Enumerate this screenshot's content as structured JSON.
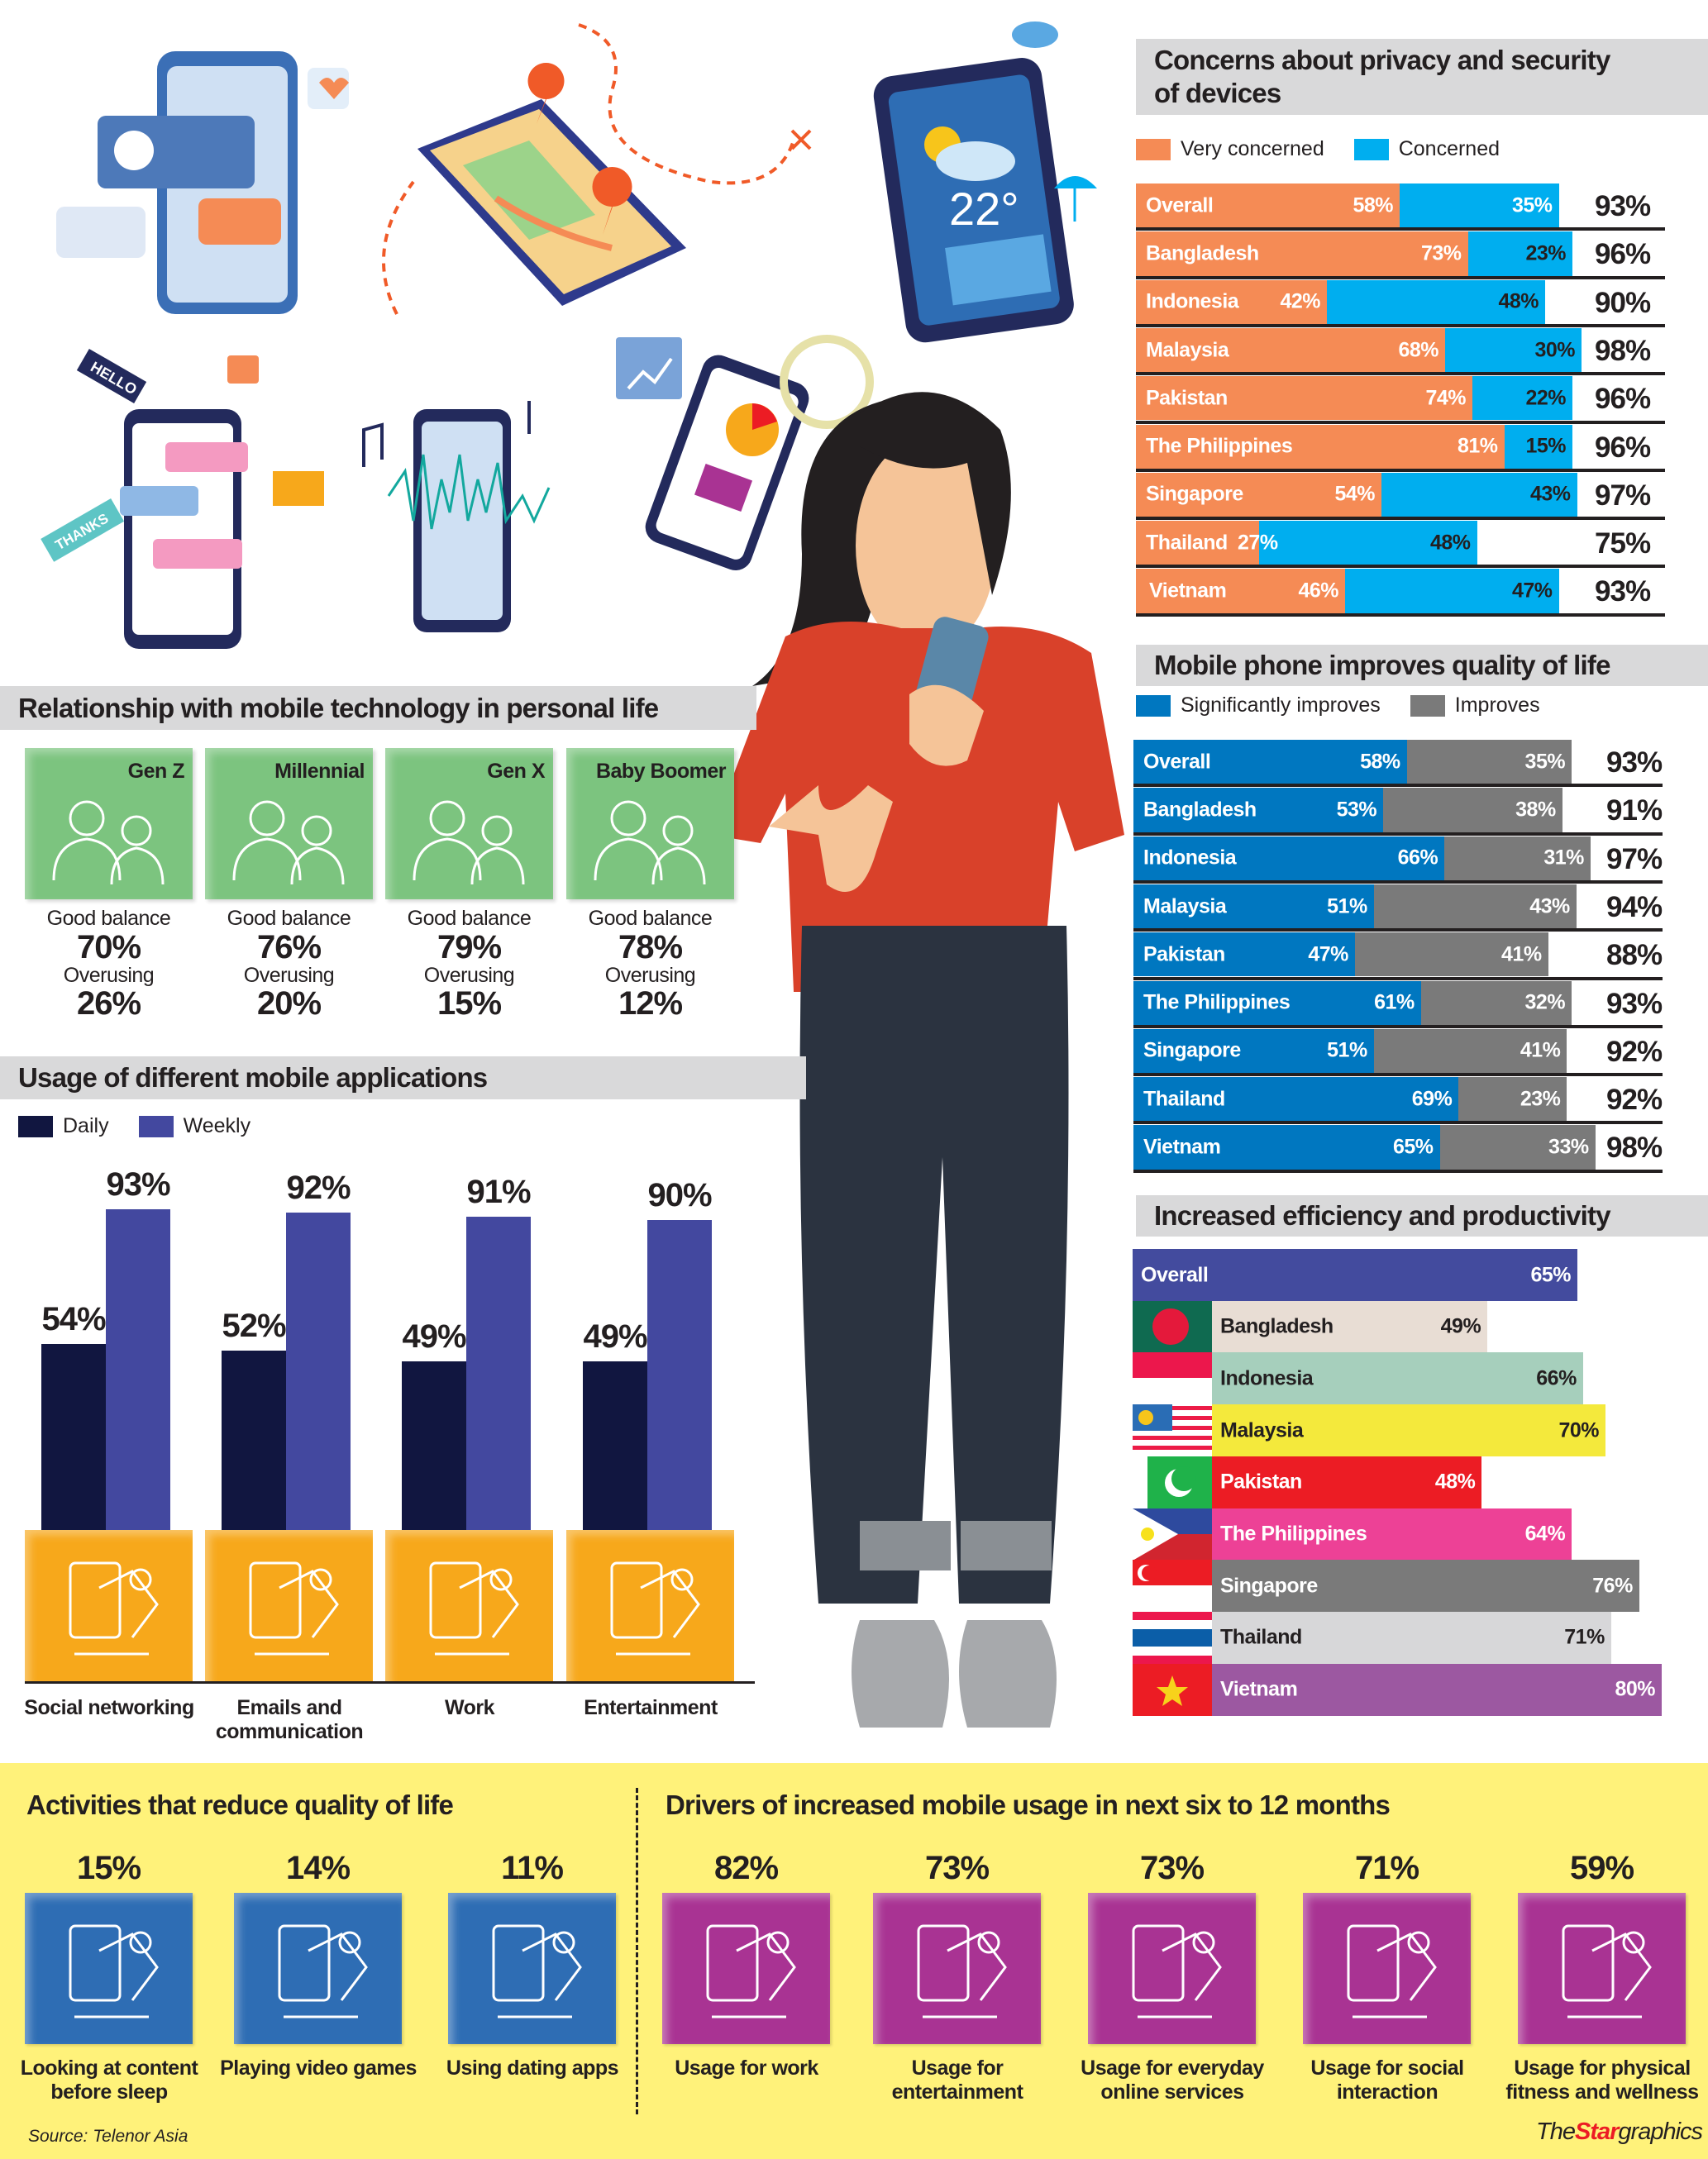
{
  "illustration": {
    "weather_temp": "22°",
    "sticker_hello": "HELLO",
    "sticker_thanks": "THANKS"
  },
  "relationship": {
    "title": "Relationship with mobile technology in personal life",
    "good_label": "Good balance",
    "over_label": "Overusing",
    "generations": [
      {
        "name": "Gen Z",
        "good_balance": 70,
        "overusing": 26,
        "icon": "ideas-person-icon"
      },
      {
        "name": "Millennial",
        "good_balance": 76,
        "overusing": 20,
        "icon": "video-call-icon"
      },
      {
        "name": "Gen X",
        "good_balance": 79,
        "overusing": 15,
        "icon": "family-icon"
      },
      {
        "name": "Baby Boomer",
        "good_balance": 78,
        "overusing": 12,
        "icon": "elderly-couple-icon"
      }
    ]
  },
  "chart_data": [
    {
      "type": "bar",
      "orientation": "horizontal",
      "stacked": true,
      "title": "Concerns about privacy and security of devices",
      "categories": [
        "Overall",
        "Bangladesh",
        "Indonesia",
        "Malaysia",
        "Pakistan",
        "The Philippines",
        "Singapore",
        "Thailand",
        "Vietnam"
      ],
      "series": [
        {
          "name": "Very concerned",
          "color": "#f58b55",
          "values": [
            58,
            73,
            42,
            68,
            74,
            81,
            54,
            27,
            46
          ]
        },
        {
          "name": "Concerned",
          "color": "#00aeef",
          "values": [
            35,
            23,
            48,
            30,
            22,
            15,
            43,
            48,
            47
          ]
        }
      ],
      "totals": [
        93,
        96,
        90,
        98,
        96,
        96,
        97,
        75,
        93
      ],
      "legend": "top-left"
    },
    {
      "type": "bar",
      "orientation": "horizontal",
      "stacked": true,
      "title": "Mobile phone improves quality of life",
      "categories": [
        "Overall",
        "Bangladesh",
        "Indonesia",
        "Malaysia",
        "Pakistan",
        "The Philippines",
        "Singapore",
        "Thailand",
        "Vietnam"
      ],
      "series": [
        {
          "name": "Significantly improves",
          "color": "#0077c0",
          "values": [
            58,
            53,
            66,
            51,
            47,
            61,
            51,
            69,
            65
          ]
        },
        {
          "name": "Improves",
          "color": "#7a7a7a",
          "values": [
            35,
            38,
            31,
            43,
            41,
            32,
            41,
            23,
            33
          ]
        }
      ],
      "totals": [
        93,
        91,
        97,
        94,
        88,
        93,
        92,
        92,
        98
      ],
      "legend": "top-left"
    },
    {
      "type": "bar",
      "orientation": "horizontal",
      "title": "Increased efficiency and productivity",
      "categories": [
        "Overall",
        "Bangladesh",
        "Indonesia",
        "Malaysia",
        "Pakistan",
        "The Philippines",
        "Singapore",
        "Thailand",
        "Vietnam"
      ],
      "values": [
        65,
        49,
        66,
        70,
        48,
        64,
        76,
        71,
        80
      ],
      "colors": [
        "#434b9e",
        "#e8ddd4",
        "#a6cfbc",
        "#f4e93c",
        "#ec1c24",
        "#ed4196",
        "#7a7a7a",
        "#d7d7d9",
        "#9c58a1"
      ],
      "flags": [
        "",
        "flag-bangladesh-icon",
        "flag-indonesia-icon",
        "flag-malaysia-icon",
        "flag-pakistan-icon",
        "flag-philippines-icon",
        "flag-singapore-icon",
        "flag-thailand-icon",
        "flag-vietnam-icon"
      ]
    },
    {
      "type": "bar",
      "orientation": "vertical",
      "title": "Usage of different mobile applications",
      "categories": [
        "Social networking",
        "Emails and communication",
        "Work",
        "Entertainment"
      ],
      "series": [
        {
          "name": "Daily",
          "color": "#111640",
          "values": [
            54,
            52,
            49,
            49
          ]
        },
        {
          "name": "Weekly",
          "color": "#43489f",
          "values": [
            93,
            92,
            91,
            90
          ]
        }
      ],
      "ylim": [
        0,
        100
      ],
      "legend": "top-left"
    }
  ],
  "activities": {
    "title": "Activities that reduce quality of life",
    "color": "#2e6db4",
    "items": [
      {
        "value": 15,
        "label": "Looking at content before sleep",
        "icon": "bedtime-phone-icon"
      },
      {
        "value": 14,
        "label": "Playing video games",
        "icon": "gamepad-icon"
      },
      {
        "value": 11,
        "label": "Using dating apps",
        "icon": "swipe-phone-icon"
      }
    ]
  },
  "drivers": {
    "title": "Drivers of increased mobile usage in next six to 12 months",
    "color": "#a93393",
    "items": [
      {
        "value": 82,
        "label": "Usage for work",
        "icon": "work-chart-icon"
      },
      {
        "value": 73,
        "label": "Usage for entertainment",
        "icon": "tablet-sparkle-icon"
      },
      {
        "value": 73,
        "label": "Usage for everyday online services",
        "icon": "globe-services-icon"
      },
      {
        "value": 71,
        "label": "Usage for social interaction",
        "icon": "chat-bubbles-icon"
      },
      {
        "value": 59,
        "label": "Usage for physical fitness and wellness",
        "icon": "fitness-heart-icon"
      }
    ]
  },
  "footer": {
    "source": "Source: Telenor Asia",
    "logo_the": "The",
    "logo_star": "Star",
    "logo_graphics": "graphics"
  }
}
